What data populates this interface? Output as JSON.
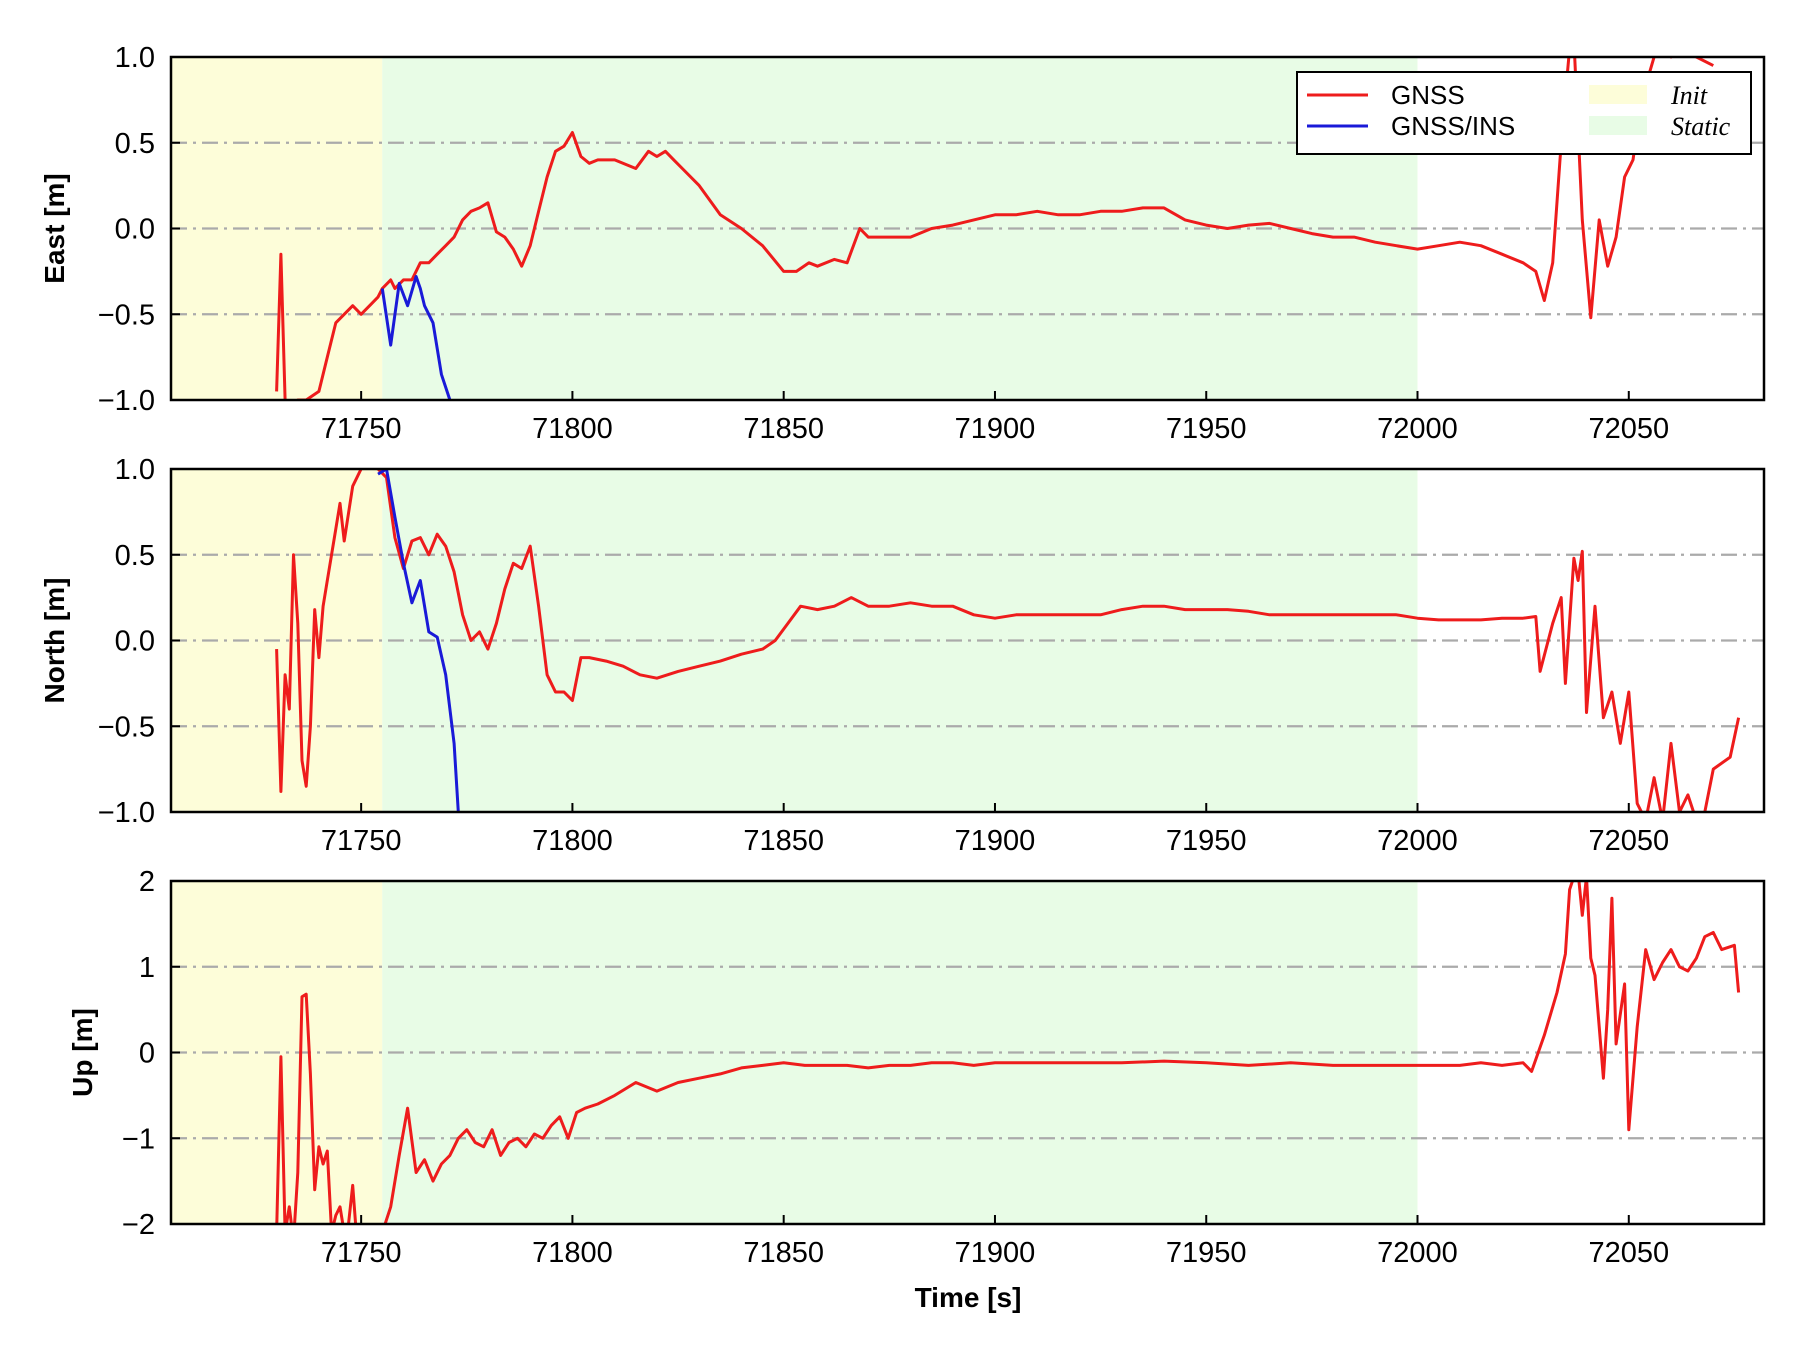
{
  "chart_data": [
    {
      "type": "line",
      "ylabel": "East [m]",
      "xlabel": "",
      "xlim": [
        71705,
        72082
      ],
      "ylim": [
        -1.0,
        1.0
      ],
      "xticks": [
        71750,
        71800,
        71850,
        71900,
        71950,
        72000,
        72050
      ],
      "xtick_labels": [
        "71750",
        "71800",
        "71850",
        "71900",
        "71950",
        "72000",
        "72050"
      ],
      "yticks": [
        -1.0,
        -0.5,
        0.0,
        0.5,
        1.0
      ],
      "ytick_labels": [
        "−1.0",
        "−0.5",
        "0.0",
        "0.5",
        "1.0"
      ],
      "grid": "horizontal dash-dot",
      "shaded_regions": [
        {
          "name": "Init",
          "x": [
            71705,
            71755
          ],
          "color": "#fdfdd9"
        },
        {
          "name": "Static",
          "x": [
            71755,
            72000
          ],
          "color": "#e8fce6"
        }
      ],
      "legend": {
        "placement": "top-right",
        "entries": [
          {
            "label": "GNSS",
            "kind": "line",
            "color": "#ee1c1c"
          },
          {
            "label": "GNSS/INS",
            "kind": "line",
            "color": "#1a1ad8"
          },
          {
            "label": "Init",
            "kind": "patch",
            "color": "#fdfdd9"
          },
          {
            "label": "Static",
            "kind": "patch",
            "color": "#e8fce6"
          }
        ]
      },
      "series": [
        {
          "name": "GNSS",
          "color": "#ee1c1c",
          "x": [
            71730,
            71731,
            71732,
            71733,
            71735,
            71737,
            71740,
            71742,
            71744,
            71746,
            71748,
            71750,
            71752,
            71754,
            71755,
            71757,
            71758,
            71760,
            71762,
            71764,
            71766,
            71768,
            71770,
            71772,
            71774,
            71776,
            71778,
            71780,
            71782,
            71784,
            71786,
            71788,
            71790,
            71792,
            71794,
            71796,
            71798,
            71800,
            71802,
            71804,
            71806,
            71810,
            71815,
            71818,
            71820,
            71822,
            71824,
            71826,
            71830,
            71835,
            71840,
            71845,
            71850,
            71853,
            71856,
            71858,
            71862,
            71865,
            71868,
            71870,
            71875,
            71880,
            71885,
            71890,
            71895,
            71900,
            71905,
            71910,
            71915,
            71920,
            71925,
            71930,
            71935,
            71940,
            71945,
            71950,
            71955,
            71960,
            71965,
            71970,
            71975,
            71980,
            71985,
            71990,
            71995,
            72000,
            72005,
            72010,
            72015,
            72020,
            72025,
            72028,
            72030,
            72032,
            72034,
            72036,
            72037,
            72039,
            72041,
            72043,
            72045,
            72047,
            72049,
            72051,
            72053,
            72056,
            72058,
            72060,
            72063,
            72066,
            72070
          ],
          "y": [
            -0.95,
            -0.15,
            -1.0,
            -1.05,
            -1.0,
            -1.0,
            -0.95,
            -0.75,
            -0.55,
            -0.5,
            -0.45,
            -0.5,
            -0.45,
            -0.4,
            -0.35,
            -0.3,
            -0.35,
            -0.3,
            -0.3,
            -0.2,
            -0.2,
            -0.15,
            -0.1,
            -0.05,
            0.05,
            0.1,
            0.12,
            0.15,
            -0.02,
            -0.05,
            -0.12,
            -0.22,
            -0.1,
            0.1,
            0.3,
            0.45,
            0.48,
            0.56,
            0.42,
            0.38,
            0.4,
            0.4,
            0.35,
            0.45,
            0.42,
            0.45,
            0.4,
            0.35,
            0.25,
            0.08,
            0.0,
            -0.1,
            -0.25,
            -0.25,
            -0.2,
            -0.22,
            -0.18,
            -0.2,
            0.0,
            -0.05,
            -0.05,
            -0.05,
            0.0,
            0.02,
            0.05,
            0.08,
            0.08,
            0.1,
            0.08,
            0.08,
            0.1,
            0.1,
            0.12,
            0.12,
            0.05,
            0.02,
            0.0,
            0.02,
            0.03,
            0.0,
            -0.03,
            -0.05,
            -0.05,
            -0.08,
            -0.1,
            -0.12,
            -0.1,
            -0.08,
            -0.1,
            -0.15,
            -0.2,
            -0.25,
            -0.42,
            -0.2,
            0.5,
            1.05,
            1.1,
            0.05,
            -0.52,
            0.05,
            -0.22,
            -0.05,
            0.3,
            0.4,
            0.75,
            1.0,
            1.05,
            1.0,
            1.05,
            1.0,
            0.95
          ]
        },
        {
          "name": "GNSS/INS",
          "color": "#1a1ad8",
          "x": [
            71755,
            71757,
            71759,
            71761,
            71763,
            71764,
            71765,
            71767,
            71769,
            71771
          ],
          "y": [
            -0.35,
            -0.68,
            -0.32,
            -0.45,
            -0.28,
            -0.35,
            -0.45,
            -0.55,
            -0.85,
            -1.0
          ]
        }
      ]
    },
    {
      "type": "line",
      "ylabel": "North [m]",
      "xlabel": "",
      "xlim": [
        71705,
        72082
      ],
      "ylim": [
        -1.0,
        1.0
      ],
      "xticks": [
        71750,
        71800,
        71850,
        71900,
        71950,
        72000,
        72050
      ],
      "xtick_labels": [
        "71750",
        "71800",
        "71850",
        "71900",
        "71950",
        "72000",
        "72050"
      ],
      "yticks": [
        -1.0,
        -0.5,
        0.0,
        0.5,
        1.0
      ],
      "ytick_labels": [
        "−1.0",
        "−0.5",
        "0.0",
        "0.5",
        "1.0"
      ],
      "grid": "horizontal dash-dot",
      "shaded_regions": [
        {
          "name": "Init",
          "x": [
            71705,
            71755
          ],
          "color": "#fdfdd9"
        },
        {
          "name": "Static",
          "x": [
            71755,
            72000
          ],
          "color": "#e8fce6"
        }
      ],
      "series": [
        {
          "name": "GNSS",
          "color": "#ee1c1c",
          "x": [
            71730,
            71731,
            71732,
            71733,
            71734,
            71735,
            71736,
            71737,
            71738,
            71739,
            71740,
            71741,
            71742,
            71744,
            71745,
            71746,
            71748,
            71750,
            71752,
            71754,
            71756,
            71758,
            71760,
            71762,
            71764,
            71766,
            71768,
            71770,
            71772,
            71774,
            71776,
            71778,
            71780,
            71782,
            71784,
            71786,
            71788,
            71790,
            71792,
            71794,
            71796,
            71798,
            71800,
            71802,
            71804,
            71808,
            71812,
            71816,
            71820,
            71825,
            71830,
            71835,
            71840,
            71845,
            71848,
            71851,
            71854,
            71858,
            71862,
            71866,
            71870,
            71875,
            71880,
            71885,
            71890,
            71895,
            71900,
            71905,
            71910,
            71915,
            71920,
            71925,
            71930,
            71935,
            71940,
            71945,
            71950,
            71955,
            71960,
            71965,
            71970,
            71975,
            71980,
            71985,
            71990,
            71995,
            72000,
            72005,
            72010,
            72015,
            72020,
            72025,
            72028,
            72029,
            72032,
            72034,
            72035,
            72037,
            72038,
            72039,
            72040,
            72042,
            72044,
            72046,
            72048,
            72050,
            72052,
            72054,
            72056,
            72058,
            72060,
            72062,
            72064,
            72066,
            72068,
            72070,
            72074,
            72076
          ],
          "y": [
            -0.05,
            -0.88,
            -0.2,
            -0.4,
            0.5,
            0.1,
            -0.7,
            -0.85,
            -0.5,
            0.18,
            -0.1,
            0.2,
            0.35,
            0.65,
            0.8,
            0.58,
            0.9,
            1.0,
            1.02,
            1.0,
            0.95,
            0.6,
            0.42,
            0.58,
            0.6,
            0.5,
            0.62,
            0.55,
            0.4,
            0.15,
            0.0,
            0.05,
            -0.05,
            0.1,
            0.3,
            0.45,
            0.42,
            0.55,
            0.2,
            -0.2,
            -0.3,
            -0.3,
            -0.35,
            -0.1,
            -0.1,
            -0.12,
            -0.15,
            -0.2,
            -0.22,
            -0.18,
            -0.15,
            -0.12,
            -0.08,
            -0.05,
            0.0,
            0.1,
            0.2,
            0.18,
            0.2,
            0.25,
            0.2,
            0.2,
            0.22,
            0.2,
            0.2,
            0.15,
            0.13,
            0.15,
            0.15,
            0.15,
            0.15,
            0.15,
            0.18,
            0.2,
            0.2,
            0.18,
            0.18,
            0.18,
            0.17,
            0.15,
            0.15,
            0.15,
            0.15,
            0.15,
            0.15,
            0.15,
            0.13,
            0.12,
            0.12,
            0.12,
            0.13,
            0.13,
            0.14,
            -0.18,
            0.1,
            0.25,
            -0.25,
            0.48,
            0.35,
            0.52,
            -0.42,
            0.2,
            -0.45,
            -0.3,
            -0.6,
            -0.3,
            -0.95,
            -1.05,
            -0.8,
            -1.05,
            -0.6,
            -1.0,
            -0.9,
            -1.05,
            -1.0,
            -0.75,
            -0.68,
            -0.45
          ],
          "_note": ""
        },
        {
          "name": "GNSS/INS",
          "color": "#1a1ad8",
          "x": [
            71754,
            71756,
            71758,
            71760,
            71762,
            71764,
            71766,
            71768,
            71770,
            71772,
            71773
          ],
          "y": [
            0.97,
            1.0,
            0.72,
            0.45,
            0.22,
            0.35,
            0.05,
            0.02,
            -0.2,
            -0.6,
            -1.0
          ]
        }
      ]
    },
    {
      "type": "line",
      "ylabel": "Up [m]",
      "xlabel": "Time [s]",
      "xlim": [
        71705,
        72082
      ],
      "ylim": [
        -2,
        2
      ],
      "xticks": [
        71750,
        71800,
        71850,
        71900,
        71950,
        72000,
        72050
      ],
      "xtick_labels": [
        "71750",
        "71800",
        "71850",
        "71900",
        "71950",
        "72000",
        "72050"
      ],
      "yticks": [
        -2,
        -1,
        0,
        1,
        2
      ],
      "ytick_labels": [
        "−2",
        "−1",
        "0",
        "1",
        "2"
      ],
      "grid": "horizontal dash-dot",
      "shaded_regions": [
        {
          "name": "Init",
          "x": [
            71705,
            71755
          ],
          "color": "#fdfdd9"
        },
        {
          "name": "Static",
          "x": [
            71755,
            72000
          ],
          "color": "#e8fce6"
        }
      ],
      "series": [
        {
          "name": "GNSS",
          "color": "#ee1c1c",
          "x": [
            71730,
            71731,
            71732,
            71733,
            71734,
            71735,
            71736,
            71737,
            71738,
            71739,
            71740,
            71741,
            71742,
            71743,
            71744,
            71745,
            71746,
            71747,
            71748,
            71749,
            71750,
            71751,
            71753,
            71755,
            71757,
            71759,
            71761,
            71763,
            71765,
            71767,
            71769,
            71771,
            71773,
            71775,
            71777,
            71779,
            71781,
            71783,
            71785,
            71787,
            71789,
            71791,
            71793,
            71795,
            71797,
            71799,
            71801,
            71803,
            71806,
            71810,
            71815,
            71820,
            71825,
            71830,
            71835,
            71840,
            71845,
            71850,
            71855,
            71860,
            71865,
            71870,
            71875,
            71880,
            71885,
            71890,
            71895,
            71900,
            71910,
            71920,
            71930,
            71940,
            71950,
            71960,
            71970,
            71980,
            71990,
            72000,
            72005,
            72010,
            72015,
            72020,
            72025,
            72027,
            72030,
            72033,
            72035,
            72036,
            72037,
            72038,
            72039,
            72040,
            72041,
            72042,
            72044,
            72045,
            72046,
            72047,
            72049,
            72050,
            72052,
            72054,
            72056,
            72058,
            72060,
            72062,
            72064,
            72066,
            72068,
            72070,
            72072,
            72075,
            72076
          ],
          "y": [
            -2.1,
            -0.05,
            -2.1,
            -1.8,
            -2.2,
            -1.4,
            0.65,
            0.68,
            -0.25,
            -1.6,
            -1.1,
            -1.3,
            -1.15,
            -2.1,
            -1.9,
            -1.8,
            -2.1,
            -2.0,
            -1.55,
            -2.2,
            -2.3,
            -2.2,
            -2.1,
            -2.1,
            -1.8,
            -1.2,
            -0.65,
            -1.4,
            -1.25,
            -1.5,
            -1.3,
            -1.2,
            -1.0,
            -0.9,
            -1.05,
            -1.1,
            -0.9,
            -1.2,
            -1.05,
            -1.0,
            -1.1,
            -0.95,
            -1.0,
            -0.85,
            -0.75,
            -1.0,
            -0.7,
            -0.65,
            -0.6,
            -0.5,
            -0.35,
            -0.45,
            -0.35,
            -0.3,
            -0.25,
            -0.18,
            -0.15,
            -0.12,
            -0.15,
            -0.15,
            -0.15,
            -0.18,
            -0.15,
            -0.15,
            -0.12,
            -0.12,
            -0.15,
            -0.12,
            -0.12,
            -0.12,
            -0.12,
            -0.1,
            -0.12,
            -0.15,
            -0.12,
            -0.15,
            -0.15,
            -0.15,
            -0.15,
            -0.15,
            -0.12,
            -0.15,
            -0.12,
            -0.22,
            0.2,
            0.7,
            1.15,
            1.9,
            2.05,
            2.1,
            1.6,
            2.05,
            1.1,
            0.9,
            -0.3,
            0.5,
            1.8,
            0.1,
            0.8,
            -0.9,
            0.3,
            1.2,
            0.85,
            1.05,
            1.2,
            1.0,
            0.95,
            1.1,
            1.35,
            1.4,
            1.2,
            1.25,
            0.7
          ]
        }
      ]
    }
  ]
}
